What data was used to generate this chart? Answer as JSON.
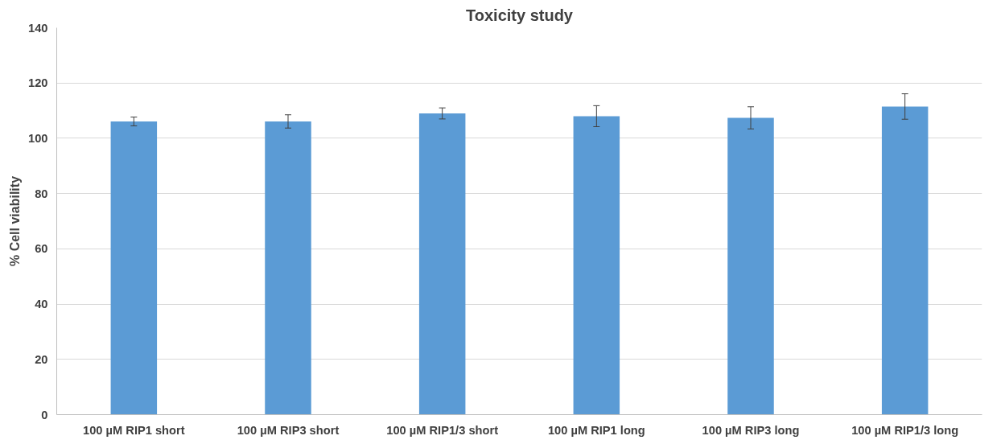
{
  "chart_data": {
    "type": "bar",
    "title": "Toxicity study",
    "ylabel": "% Cell viability",
    "categories": [
      "100 µM RIP1 short",
      "100 µM RIP3 short",
      "100 µM RIP1/3 short",
      "100 µM RIP1 long",
      "100 µM RIP3 long",
      "100 µM RIP1/3 long"
    ],
    "values": [
      106.1,
      106.1,
      109,
      108,
      107.4,
      111.5
    ],
    "errors": [
      1.6,
      2.4,
      2,
      3.8,
      4,
      4.6
    ],
    "color": "#5b9bd5",
    "ylim": [
      0,
      140
    ],
    "yticks": [
      0,
      20,
      40,
      60,
      80,
      100,
      120,
      140
    ],
    "grid": "y"
  }
}
